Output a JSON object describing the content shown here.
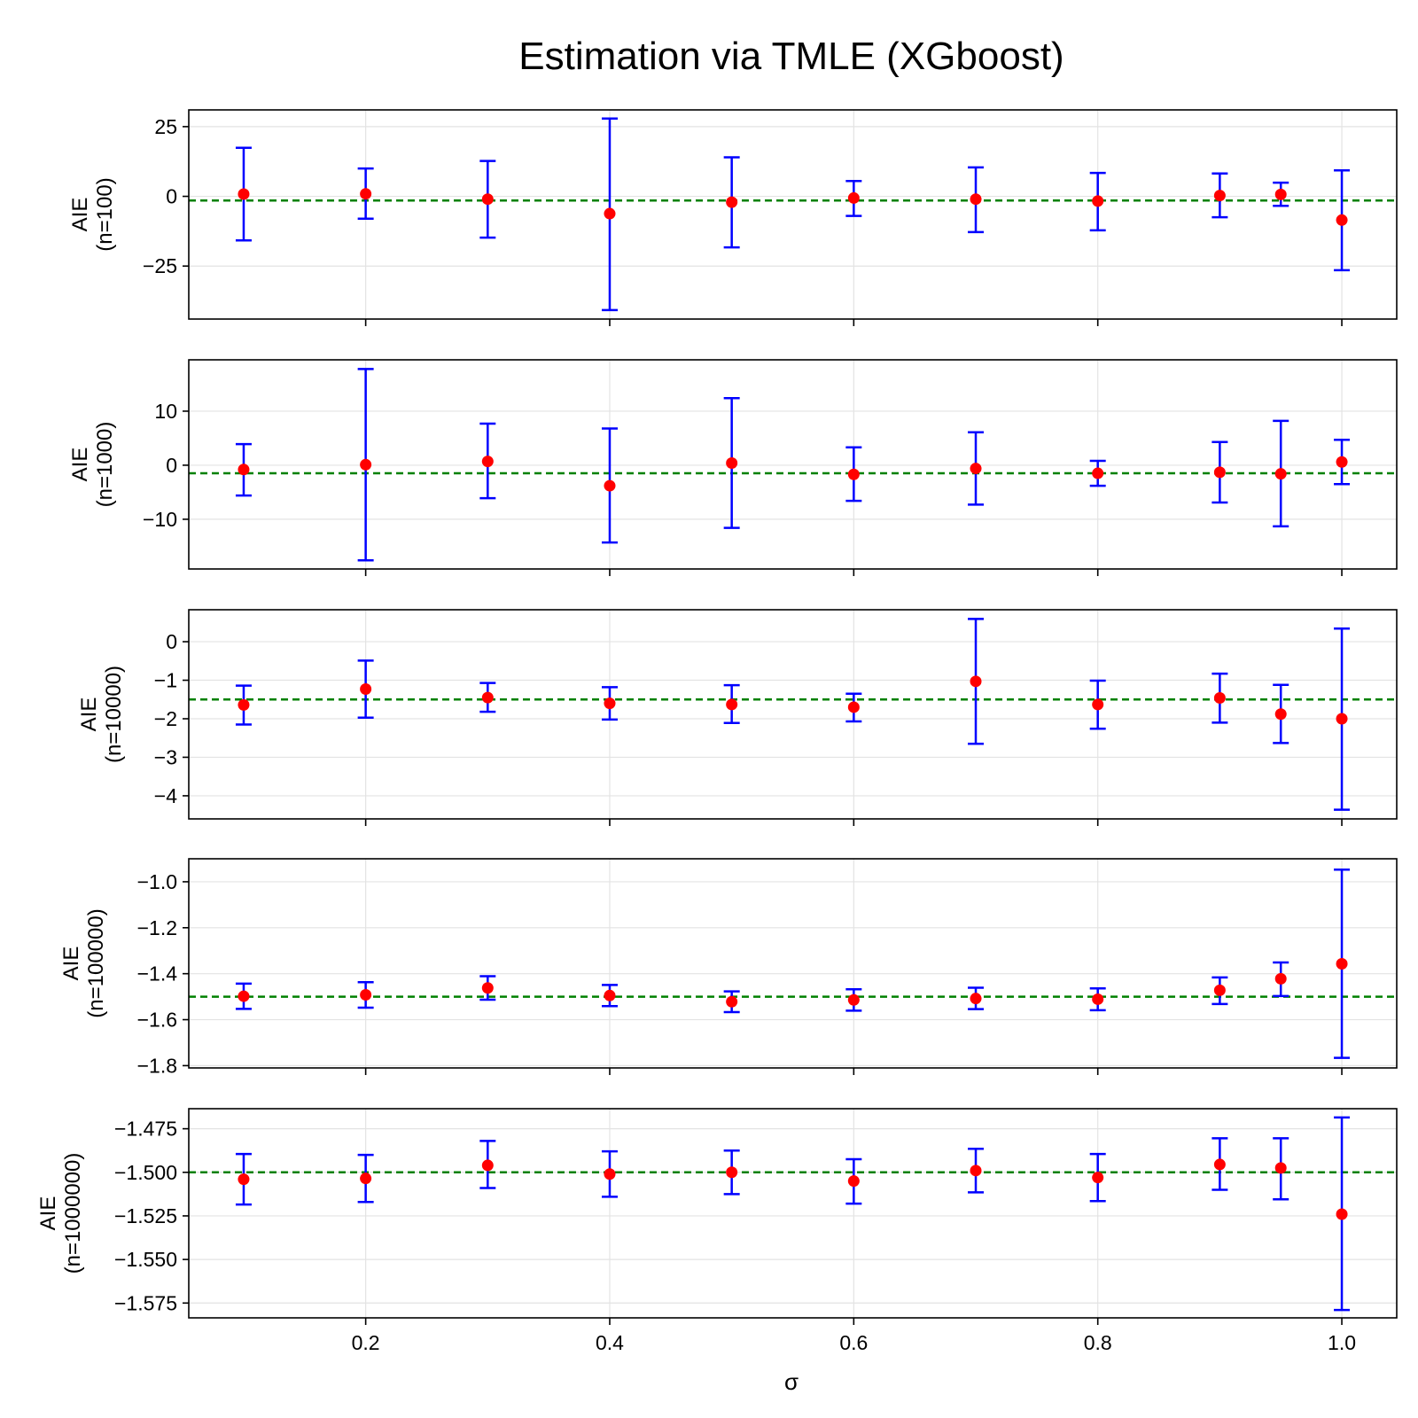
{
  "chart_data": {
    "type": "scatter",
    "title": "Estimation via TMLE (XGboost)",
    "xlabel": "σ",
    "x": [
      0.1,
      0.2,
      0.3,
      0.4,
      0.5,
      0.6,
      0.7,
      0.8,
      0.9,
      0.95,
      1.0
    ],
    "xlim": [
      0.055,
      1.045
    ],
    "xticks": [
      0.2,
      0.4,
      0.6,
      0.8,
      1.0
    ],
    "xtick_labels": [
      "0.2",
      "0.4",
      "0.6",
      "0.8",
      "1.0"
    ],
    "reference_line": {
      "y": -1.5,
      "style": "dashed",
      "color": "#008000"
    },
    "grid": true,
    "colors": {
      "point": "#ff0000",
      "errorbar": "#0000ff",
      "reference": "#008000",
      "grid": "#e3e3e3"
    },
    "panels": [
      {
        "ylabel_line1": "AIE",
        "ylabel_line2": "(n=100)",
        "ylim": [
          -44,
          31
        ],
        "yticks": [
          25,
          0,
          -25
        ],
        "ytick_labels": [
          "25",
          "0",
          "−25"
        ],
        "y": [
          0.8,
          0.9,
          -1.0,
          -6.2,
          -2.1,
          -0.6,
          -1.0,
          -1.7,
          0.3,
          0.7,
          -8.5
        ],
        "lower": [
          -15.8,
          -8.0,
          -14.8,
          -40.8,
          -18.3,
          -7.0,
          -12.8,
          -12.2,
          -7.5,
          -3.4,
          -26.5
        ],
        "upper": [
          17.4,
          10.0,
          12.7,
          27.9,
          14.0,
          5.5,
          10.4,
          8.4,
          8.2,
          4.9,
          9.3
        ]
      },
      {
        "ylabel_line1": "AIE",
        "ylabel_line2": "(n=1000)",
        "ylim": [
          -19.2,
          19.5
        ],
        "yticks": [
          10,
          0,
          -10
        ],
        "ytick_labels": [
          "10",
          "0",
          "−10"
        ],
        "y": [
          -0.8,
          0.1,
          0.7,
          -3.8,
          0.4,
          -1.7,
          -0.6,
          -1.5,
          -1.3,
          -1.6,
          0.6
        ],
        "lower": [
          -5.6,
          -17.6,
          -6.1,
          -14.3,
          -11.6,
          -6.6,
          -7.3,
          -3.8,
          -6.9,
          -11.3,
          -3.5
        ],
        "upper": [
          3.9,
          17.8,
          7.7,
          6.8,
          12.4,
          3.3,
          6.1,
          0.8,
          4.3,
          8.2,
          4.7
        ]
      },
      {
        "ylabel_line1": "AIE",
        "ylabel_line2": "(n=10000)",
        "ylim": [
          -4.6,
          0.83
        ],
        "yticks": [
          0,
          -1,
          -2,
          -3,
          -4
        ],
        "ytick_labels": [
          "0",
          "−1",
          "−2",
          "−3",
          "−4"
        ],
        "y": [
          -1.64,
          -1.23,
          -1.45,
          -1.6,
          -1.63,
          -1.7,
          -1.03,
          -1.63,
          -1.46,
          -1.88,
          -2.0
        ],
        "lower": [
          -2.15,
          -1.97,
          -1.82,
          -2.02,
          -2.11,
          -2.07,
          -2.65,
          -2.26,
          -2.1,
          -2.63,
          -4.36
        ],
        "upper": [
          -1.14,
          -0.49,
          -1.07,
          -1.18,
          -1.13,
          -1.35,
          0.59,
          -1.01,
          -0.83,
          -1.12,
          0.34
        ]
      },
      {
        "ylabel_line1": "AIE",
        "ylabel_line2": "(n=100000)",
        "ylim": [
          -1.81,
          -0.9
        ],
        "yticks": [
          -1.0,
          -1.2,
          -1.4,
          -1.6,
          -1.8
        ],
        "ytick_labels": [
          "−1.0",
          "−1.2",
          "−1.4",
          "−1.6",
          "−1.8"
        ],
        "y": [
          -1.498,
          -1.492,
          -1.462,
          -1.495,
          -1.522,
          -1.514,
          -1.508,
          -1.511,
          -1.472,
          -1.422,
          -1.357
        ],
        "lower": [
          -1.553,
          -1.548,
          -1.513,
          -1.541,
          -1.567,
          -1.561,
          -1.554,
          -1.559,
          -1.532,
          -1.497,
          -1.766
        ],
        "upper": [
          -1.443,
          -1.437,
          -1.411,
          -1.449,
          -1.477,
          -1.468,
          -1.461,
          -1.464,
          -1.416,
          -1.351,
          -0.947
        ]
      },
      {
        "ylabel_line1": "AIE",
        "ylabel_line2": "(n=1000000)",
        "ylim": [
          -1.5835,
          -1.4635
        ],
        "yticks": [
          -1.475,
          -1.5,
          -1.525,
          -1.55,
          -1.575
        ],
        "ytick_labels": [
          "−1.475",
          "−1.500",
          "−1.525",
          "−1.550",
          "−1.575"
        ],
        "y": [
          -1.504,
          -1.5035,
          -1.496,
          -1.501,
          -1.5,
          -1.505,
          -1.499,
          -1.503,
          -1.4955,
          -1.4975,
          -1.524
        ],
        "lower": [
          -1.5185,
          -1.517,
          -1.509,
          -1.514,
          -1.5125,
          -1.518,
          -1.5115,
          -1.5165,
          -1.51,
          -1.5155,
          -1.579
        ],
        "upper": [
          -1.4895,
          -1.49,
          -1.482,
          -1.488,
          -1.4875,
          -1.4925,
          -1.4865,
          -1.4895,
          -1.4805,
          -1.4805,
          -1.4685
        ]
      }
    ]
  }
}
